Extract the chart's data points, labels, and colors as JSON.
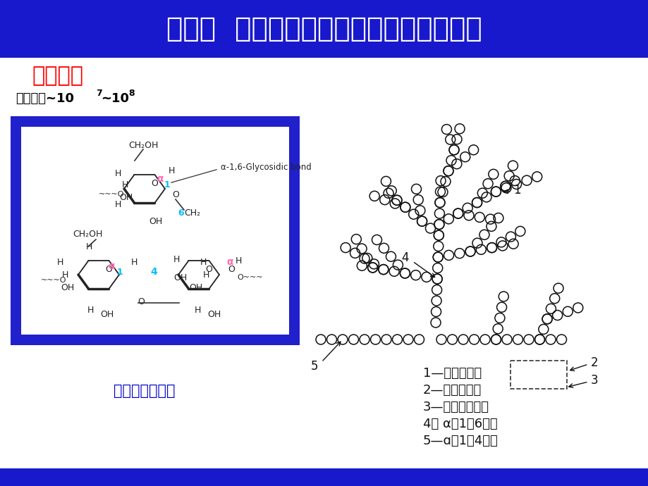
{
  "title": "第一节  多糖类天然药用高分子及其衍生物",
  "title_bg": "#1818CC",
  "title_fg": "#FFFFFF",
  "subtitle1": "支链淀粉",
  "subtitle1_color": "#FF0000",
  "box_bg": "#2020CC",
  "inner_box_bg": "#FFFFFF",
  "bottom_label": "支链淀粉的结构",
  "bottom_label_color": "#0000CC",
  "legend_items": [
    "1—葡萄糖单位",
    "2—麦芽糖单位",
    "3—异麦芽糖单位",
    "4－ α－1，6苷键",
    "5—ɑ－1，4苷键"
  ],
  "bg_color": "#FFFFFF",
  "bottom_bar_color": "#1818CC"
}
